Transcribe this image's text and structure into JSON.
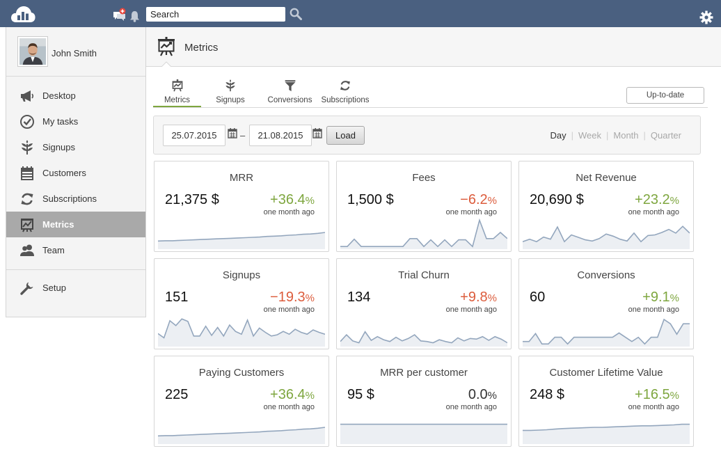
{
  "topbar": {
    "search_placeholder": "Search",
    "icons": [
      "cloud-logo-icon",
      "notifications-chat-icon",
      "bell-icon",
      "search-icon",
      "gear-icon"
    ]
  },
  "user": {
    "name": "John Smith"
  },
  "sidebar": {
    "items": [
      {
        "label": "Desktop",
        "icon": "megaphone-icon",
        "active": false
      },
      {
        "label": "My tasks",
        "icon": "check-circle-icon",
        "active": false
      },
      {
        "label": "Signups",
        "icon": "sprout-icon",
        "active": false
      },
      {
        "label": "Customers",
        "icon": "calendar-list-icon",
        "active": false
      },
      {
        "label": "Subscriptions",
        "icon": "refresh-icon",
        "active": false
      },
      {
        "label": "Metrics",
        "icon": "chart-board-icon",
        "active": true
      },
      {
        "label": "Team",
        "icon": "team-icon",
        "active": false
      }
    ],
    "setup": {
      "label": "Setup",
      "icon": "wrench-icon"
    }
  },
  "page": {
    "title": "Metrics"
  },
  "subtabs": [
    {
      "label": "Metrics",
      "icon": "chart-board-icon",
      "active": true
    },
    {
      "label": "Signups",
      "icon": "sprout-icon",
      "active": false
    },
    {
      "label": "Conversions",
      "icon": "funnel-icon",
      "active": false
    },
    {
      "label": "Subscriptions",
      "icon": "refresh-icon",
      "active": false
    }
  ],
  "uptodate_label": "Up-to-date",
  "filter": {
    "from": "25.07.2015",
    "to": "21.08.2015",
    "dash": "–",
    "load_label": "Load",
    "periods": [
      {
        "label": "Day",
        "active": true
      },
      {
        "label": "Week",
        "active": false
      },
      {
        "label": "Month",
        "active": false
      },
      {
        "label": "Quarter",
        "active": false
      }
    ]
  },
  "cards": [
    {
      "title": "MRR",
      "value": "21,375 $",
      "change_num": "+36.4",
      "change_pct": "%",
      "trend": "pos",
      "sub": "one month ago",
      "spark": [
        0.22,
        0.23,
        0.23,
        0.24,
        0.25,
        0.26,
        0.27,
        0.28,
        0.29,
        0.3,
        0.31,
        0.32,
        0.33,
        0.34,
        0.35,
        0.37,
        0.38,
        0.39,
        0.41,
        0.42,
        0.44,
        0.45,
        0.47,
        0.5
      ]
    },
    {
      "title": "Fees",
      "value": "1,500 $",
      "change_num": "−6.2",
      "change_pct": "%",
      "trend": "neg",
      "sub": "one month ago",
      "spark": [
        0.04,
        0.04,
        0.28,
        0.04,
        0.04,
        0.04,
        0.04,
        0.04,
        0.04,
        0.04,
        0.3,
        0.3,
        0.04,
        0.26,
        0.04,
        0.26,
        0.04,
        0.26,
        0.26,
        0.04,
        0.9,
        0.3,
        0.3,
        0.5,
        0.3
      ]
    },
    {
      "title": "Net Revenue",
      "value": "20,690 $",
      "change_num": "+23.2",
      "change_pct": "%",
      "trend": "pos",
      "sub": "one month ago",
      "spark": [
        0.2,
        0.28,
        0.2,
        0.35,
        0.28,
        0.68,
        0.2,
        0.42,
        0.34,
        0.26,
        0.22,
        0.3,
        0.45,
        0.38,
        0.28,
        0.22,
        0.48,
        0.2,
        0.4,
        0.42,
        0.5,
        0.6,
        0.48,
        0.7,
        0.48
      ]
    },
    {
      "title": "Signups",
      "value": "151",
      "change_num": "−19.3",
      "change_pct": "%",
      "trend": "neg",
      "sub": "one month ago",
      "spark": [
        0.38,
        0.24,
        0.8,
        0.64,
        0.86,
        0.78,
        0.3,
        0.3,
        0.62,
        0.32,
        0.58,
        0.3,
        0.66,
        0.45,
        0.36,
        0.82,
        0.3,
        0.56,
        0.42,
        0.3,
        0.34,
        0.45,
        0.36,
        0.52,
        0.42,
        0.36,
        0.5,
        0.42,
        0.36
      ]
    },
    {
      "title": "Trial Churn",
      "value": "134",
      "change_num": "+9.8",
      "change_pct": "%",
      "trend": "pos",
      "sub": "one month ago",
      "spark": [
        0.12,
        0.34,
        0.14,
        0.08,
        0.44,
        0.16,
        0.28,
        0.18,
        0.12,
        0.26,
        0.14,
        0.22,
        0.34,
        0.14,
        0.12,
        0.08,
        0.18,
        0.12,
        0.08,
        0.24,
        0.14,
        0.22,
        0.2,
        0.28,
        0.16,
        0.28,
        0.2,
        0.08
      ]
    },
    {
      "title": "Conversions",
      "value": "60",
      "change_num": "+9.1",
      "change_pct": "%",
      "trend": "pos",
      "sub": "one month ago",
      "spark": [
        0.12,
        0.12,
        0.38,
        0.04,
        0.04,
        0.26,
        0.26,
        0.04,
        0.26,
        0.26,
        0.26,
        0.26,
        0.26,
        0.26,
        0.26,
        0.4,
        0.26,
        0.12,
        0.26,
        0.04,
        0.26,
        0.26,
        0.84,
        0.7,
        0.36,
        0.7,
        0.7
      ]
    },
    {
      "title": "Paying Customers",
      "value": "225",
      "change_num": "+36.4",
      "change_pct": "%",
      "trend": "pos",
      "sub": "one month ago",
      "spark": [
        0.22,
        0.23,
        0.23,
        0.24,
        0.25,
        0.26,
        0.27,
        0.28,
        0.29,
        0.3,
        0.31,
        0.32,
        0.33,
        0.34,
        0.35,
        0.37,
        0.38,
        0.39,
        0.41,
        0.42,
        0.44,
        0.45,
        0.47,
        0.5
      ]
    },
    {
      "title": "MRR per customer",
      "value": "95 $",
      "change_num": "0.0",
      "change_pct": "%",
      "trend": "neu",
      "sub": "one month ago",
      "spark": [
        0.6,
        0.6,
        0.6,
        0.6,
        0.6,
        0.6,
        0.6,
        0.6,
        0.6,
        0.6,
        0.6,
        0.6,
        0.6,
        0.6,
        0.6,
        0.6,
        0.6,
        0.6,
        0.6,
        0.6
      ]
    },
    {
      "title": "Customer Lifetime Value",
      "value": "248 $",
      "change_num": "+16.5",
      "change_pct": "%",
      "trend": "pos",
      "sub": "one month ago",
      "spark": [
        0.4,
        0.4,
        0.41,
        0.42,
        0.44,
        0.46,
        0.47,
        0.48,
        0.49,
        0.5,
        0.5,
        0.51,
        0.52,
        0.53,
        0.54,
        0.55,
        0.55,
        0.56,
        0.57,
        0.58,
        0.6,
        0.6
      ]
    }
  ],
  "colors": {
    "topbar": "#4a6080",
    "accent_green": "#7ea63f",
    "negative_red": "#dc5c3c",
    "spark_line": "#93a6bd",
    "spark_fill": "#eceff3",
    "nav_active": "#a9a9a9"
  }
}
